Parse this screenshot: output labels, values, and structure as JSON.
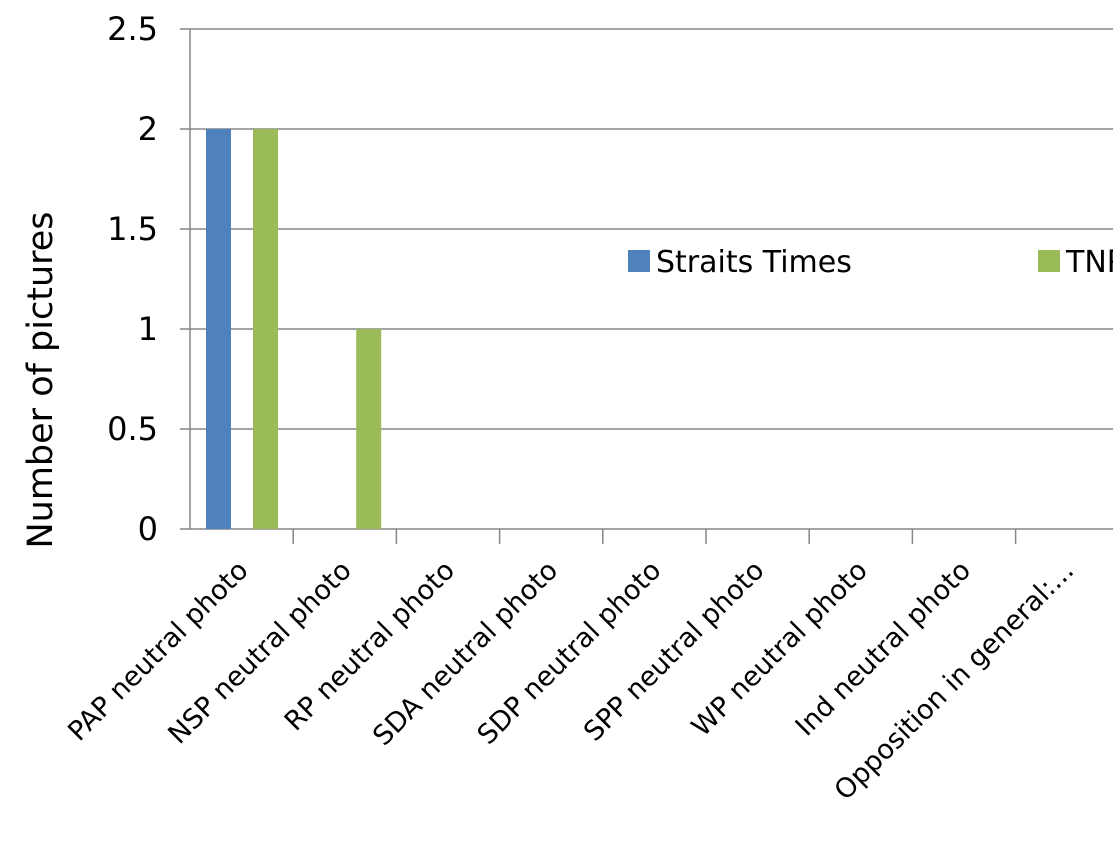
{
  "chart_data": {
    "type": "bar",
    "title": "",
    "xlabel": "",
    "ylabel": "Number of pictures",
    "ylim": [
      0,
      2.5
    ],
    "ytick_labels": [
      "0",
      "0.5",
      "1",
      "1.5",
      "2",
      "2.5"
    ],
    "yticks": [
      0,
      0.5,
      1,
      1.5,
      2,
      2.5
    ],
    "grid": true,
    "legend_position": "right",
    "categories": [
      "PAP neutral photo",
      "NSP neutral photo",
      "RP neutral photo",
      "SDA neutral photo",
      "SDP neutral photo",
      "SPP neutral photo",
      "WP neutral photo",
      "Ind neutral photo",
      "Opposition in general:..."
    ],
    "series": [
      {
        "name": "Straits Times",
        "color": "#4f81bd",
        "values": [
          2,
          0,
          0,
          0,
          0,
          0,
          0,
          0,
          0
        ]
      },
      {
        "name": "TNP",
        "color": "#9bbb59",
        "values": [
          2,
          1,
          0,
          0,
          0,
          0,
          0,
          0,
          0
        ]
      }
    ],
    "gridline_color": "#868686",
    "axis_color": "#868686"
  }
}
